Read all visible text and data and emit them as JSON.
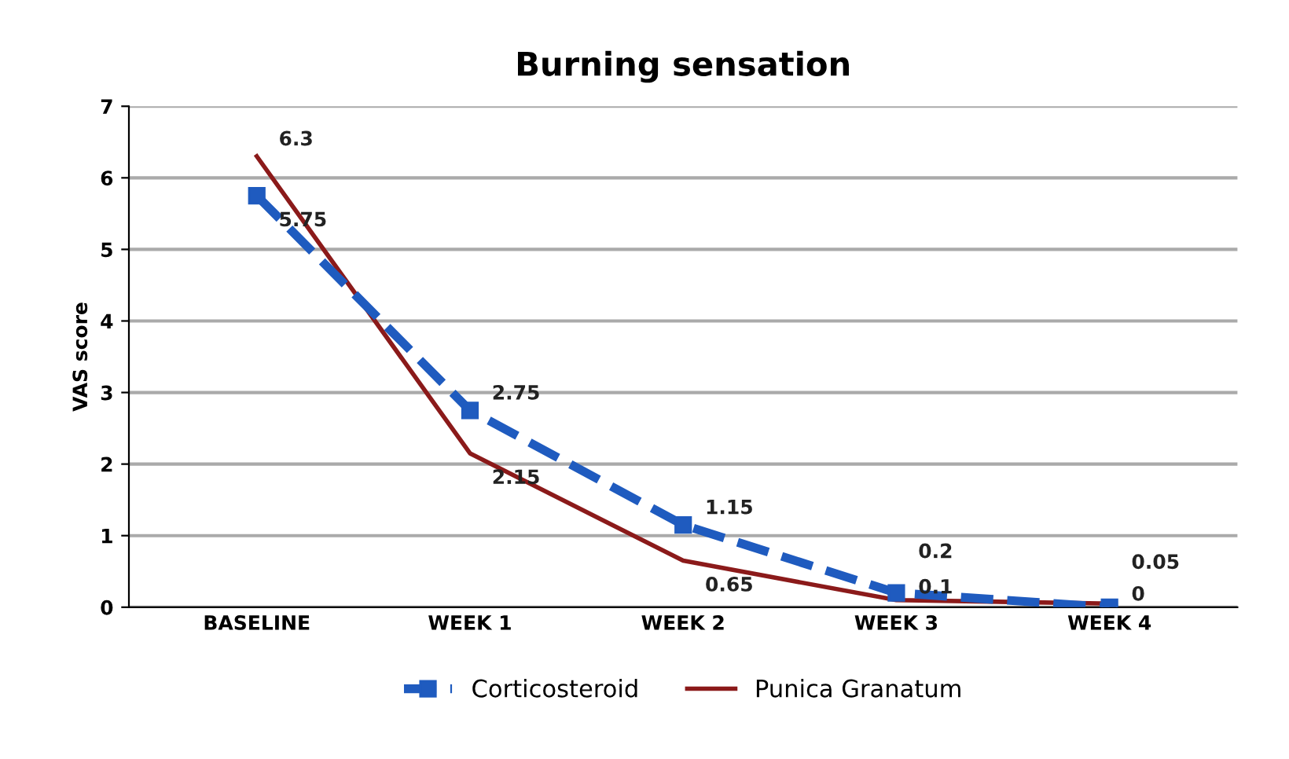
{
  "chart_data": {
    "type": "line",
    "title": "Burning sensation",
    "ylabel": "VAS score",
    "categories": [
      "BASELINE",
      "WEEK 1",
      "WEEK 2",
      "WEEK 3",
      "WEEK 4"
    ],
    "series": [
      {
        "name": "Corticosteroid",
        "color": "#1f5bbf",
        "values": [
          5.75,
          2.75,
          1.15,
          0.2,
          0
        ],
        "line_style": "dashed",
        "marker": "square"
      },
      {
        "name": "Punica Granatum",
        "color": "#8b1a1a",
        "values": [
          6.3,
          2.15,
          0.65,
          0.1,
          0.05
        ],
        "line_style": "solid",
        "marker": "none"
      }
    ],
    "data_labels": true,
    "ylim": [
      0,
      7
    ],
    "yticks": [
      0,
      1,
      2,
      3,
      4,
      5,
      6,
      7
    ],
    "grid": "y",
    "legend": "bottom"
  }
}
